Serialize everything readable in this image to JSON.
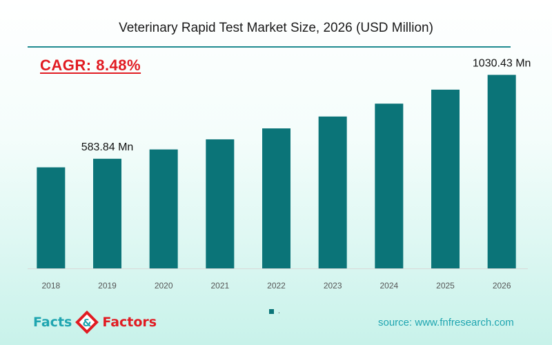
{
  "title": "Veterinary Rapid Test Market Size, 2026 (USD Million)",
  "cagr": "CAGR:  8.48%",
  "source": "source: www.fnfresearch.com",
  "logo": {
    "word1": "Facts",
    "ampersand": "&",
    "word2": "Factors"
  },
  "colors": {
    "bar": "#0b7478",
    "accent": "#1f8a8f",
    "cagr": "#e11b22"
  },
  "legend": [
    {
      "label": "."
    }
  ],
  "chart_data": {
    "type": "bar",
    "categories": [
      "2018",
      "2019",
      "2020",
      "2021",
      "2022",
      "2023",
      "2024",
      "2025",
      "2026"
    ],
    "values": [
      538.18,
      583.84,
      633.37,
      687.1,
      745.39,
      808.63,
      877.23,
      951.65,
      1030.43
    ],
    "data_labels": [
      "",
      "583.84 Mn",
      "",
      "",
      "",
      "",
      "",
      "",
      "1030.43 Mn"
    ],
    "ylim": [
      0,
      1080
    ],
    "y_axis_visible": false,
    "grid": false
  }
}
